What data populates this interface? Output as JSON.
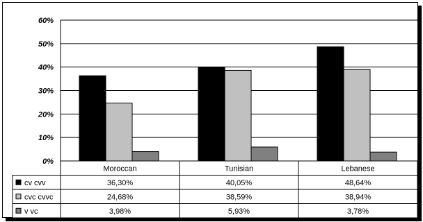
{
  "chart_data": {
    "type": "bar",
    "categories": [
      "Moroccan",
      "Tunisian",
      "Lebanese"
    ],
    "series": [
      {
        "name": "cv cvv",
        "values": [
          36.3,
          40.05,
          48.64
        ],
        "labels": [
          "36,30%",
          "40,05%",
          "48,64%"
        ],
        "color": "#000000"
      },
      {
        "name": "cvc cvvc",
        "values": [
          24.68,
          38.59,
          38.94
        ],
        "labels": [
          "24,68%",
          "38,59%",
          "38,94%"
        ],
        "color": "#c0c0c0"
      },
      {
        "name": "v vc",
        "values": [
          3.98,
          5.93,
          3.78
        ],
        "labels": [
          "3,98%",
          "5,93%",
          "3,78%"
        ],
        "color": "#808080"
      }
    ],
    "y_ticks": [
      "0%",
      "10%",
      "20%",
      "30%",
      "40%",
      "50%",
      "60%"
    ],
    "ylim": [
      0,
      60
    ],
    "grid": true,
    "legend": "data-table",
    "plot_background": "#ffffff"
  }
}
